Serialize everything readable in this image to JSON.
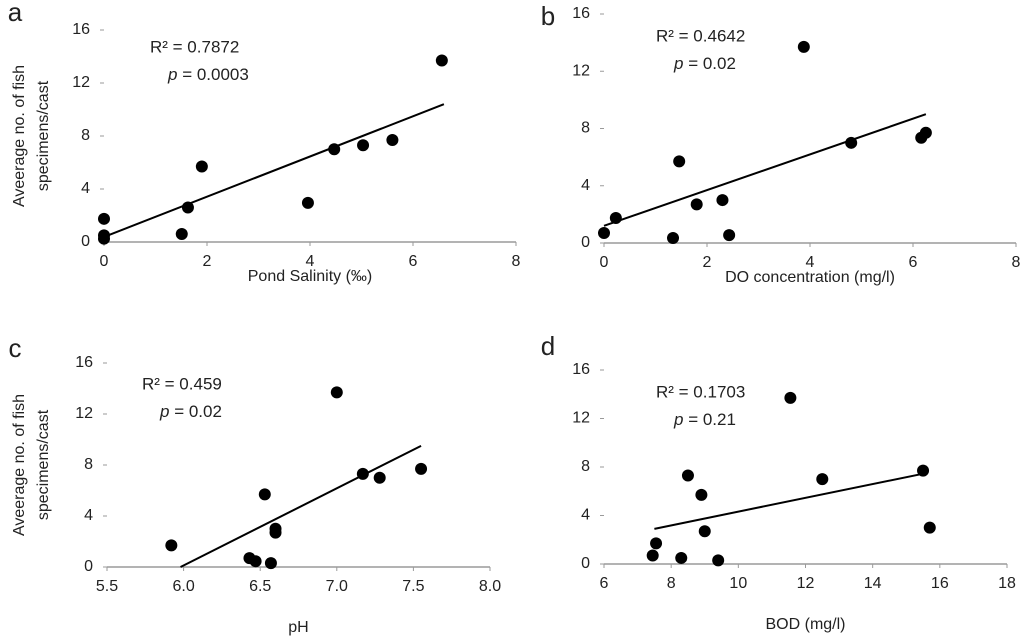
{
  "chart_data": [
    {
      "type": "scatter",
      "panel": "a",
      "xlabel": "Pond Salinity (‰)",
      "ylabel": [
        "Aveerage no. of fish",
        "specimens/cast"
      ],
      "annotation": {
        "r2": "R² = 0.7872",
        "p_symbol": "p",
        "p_text": " = 0.0003"
      },
      "x": [
        0,
        0,
        0,
        1.51,
        1.63,
        1.9,
        3.96,
        4.47,
        5.03,
        5.6,
        6.56
      ],
      "y": [
        1.75,
        0.5,
        0.25,
        0.6,
        2.6,
        5.7,
        2.95,
        7.0,
        7.3,
        7.7,
        13.7
      ],
      "trendline": {
        "x": [
          0,
          6.6
        ],
        "y": [
          0.38,
          10.4
        ]
      },
      "color": "#000000",
      "xlim": [
        0,
        8
      ],
      "ylim": [
        0,
        16
      ],
      "xticks": [
        0,
        2,
        4,
        6,
        8
      ],
      "yticks": [
        0,
        4,
        8,
        12,
        16
      ]
    },
    {
      "type": "scatter",
      "panel": "b",
      "xlabel": "DO concentration (mg/l)",
      "annotation": {
        "r2": "R² = 0.4642",
        "p_symbol": "p",
        "p_text": " = 0.02"
      },
      "x": [
        0,
        0.23,
        1.34,
        1.46,
        1.8,
        2.3,
        2.43,
        3.88,
        4.8,
        6.16,
        6.25
      ],
      "y": [
        0.7,
        1.75,
        0.35,
        5.7,
        2.7,
        3.0,
        0.55,
        13.7,
        7.0,
        7.35,
        7.7
      ],
      "trendline": {
        "x": [
          0,
          6.25
        ],
        "y": [
          1.2,
          9.0
        ]
      },
      "color": "#000000",
      "xlim": [
        0,
        8
      ],
      "ylim": [
        0,
        16
      ],
      "xticks": [
        0,
        2,
        4,
        6,
        8
      ],
      "yticks": [
        0,
        4,
        8,
        12,
        16
      ]
    },
    {
      "type": "scatter",
      "panel": "c",
      "xlabel": "pH",
      "ylabel": [
        "Aveerage no. of fish",
        "specimens/cast"
      ],
      "annotation": {
        "r2": "R² = 0.459",
        "p_symbol": "p",
        "p_text": " = 0.02"
      },
      "x": [
        5.92,
        6.43,
        6.47,
        6.53,
        6.6,
        6.6,
        6.57,
        7.0,
        7.17,
        7.28,
        7.55
      ],
      "y": [
        1.7,
        0.7,
        0.45,
        5.7,
        3.0,
        2.7,
        0.3,
        13.7,
        7.3,
        7.0,
        7.7
      ],
      "trendline": {
        "x": [
          5.98,
          7.55
        ],
        "y": [
          0,
          9.5
        ]
      },
      "color": "#000000",
      "xlim": [
        5.5,
        8
      ],
      "ylim": [
        0,
        16
      ],
      "xticks": [
        {
          "value": 5.5,
          "label": "5.5"
        },
        {
          "value": 6,
          "label": "6.0"
        },
        {
          "value": 6.5,
          "label": "6.5"
        },
        {
          "value": 7,
          "label": "7.0"
        },
        {
          "value": 7.5,
          "label": "7.5"
        },
        {
          "value": 8,
          "label": "8.0"
        }
      ],
      "yticks": [
        0,
        4,
        8,
        12,
        16
      ]
    },
    {
      "type": "scatter",
      "panel": "d",
      "xlabel": "BOD (mg/l)",
      "annotation": {
        "r2": "R² = 0.1703",
        "p_symbol": "p",
        "p_text": " = 0.21"
      },
      "x": [
        7.45,
        7.55,
        8.3,
        8.5,
        8.9,
        9.0,
        9.4,
        11.55,
        12.5,
        15.5,
        15.7
      ],
      "y": [
        0.7,
        1.7,
        0.5,
        7.3,
        5.7,
        2.7,
        0.3,
        13.7,
        7.0,
        7.7,
        3.0
      ],
      "trendline": {
        "x": [
          7.5,
          15.6
        ],
        "y": [
          2.9,
          7.5
        ]
      },
      "color": "#000000",
      "xlim": [
        6,
        18
      ],
      "ylim": [
        0,
        16
      ],
      "xticks": [
        6,
        8,
        10,
        12,
        14,
        16,
        18
      ],
      "yticks": [
        0,
        4,
        8,
        12,
        16
      ]
    }
  ]
}
